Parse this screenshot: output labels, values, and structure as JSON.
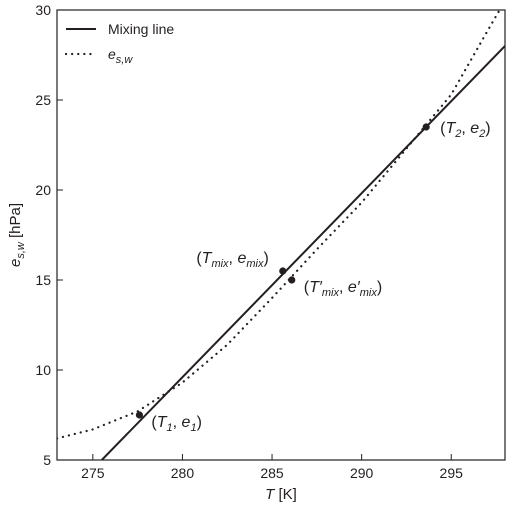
{
  "chart_data": {
    "type": "line",
    "title": "",
    "xlim": [
      273,
      298
    ],
    "ylim": [
      5,
      30
    ],
    "grid": false,
    "legend_position": "top-left",
    "x_ticks": [
      275,
      280,
      285,
      290,
      295
    ],
    "y_ticks": [
      5,
      10,
      15,
      20,
      25,
      30
    ],
    "xlabel": {
      "var": "T",
      "unit": "[K]"
    },
    "ylabel": {
      "var": "e",
      "sub": "s,w",
      "unit": "[hPa]"
    },
    "legend": [
      {
        "label": "Mixing line",
        "style": "solid"
      },
      {
        "label_var": "e",
        "label_sub": "s,w",
        "style": "dotted"
      }
    ],
    "series": [
      {
        "name": "Mixing line",
        "style": "solid",
        "x": [
          275.5,
          298.0
        ],
        "y": [
          5.0,
          28.0
        ]
      },
      {
        "name": "e_s,w",
        "style": "dotted",
        "x": [
          273.0,
          275.0,
          277.5,
          280.0,
          282.5,
          285.0,
          287.5,
          290.0,
          292.5,
          295.0,
          297.0,
          297.7
        ],
        "y": [
          6.2,
          6.7,
          7.7,
          9.3,
          11.4,
          14.0,
          16.7,
          19.3,
          22.3,
          25.3,
          28.8,
          30.0
        ]
      }
    ],
    "points": [
      {
        "x": 277.6,
        "y": 7.5,
        "label": {
          "a": "T",
          "as": "1",
          "b": "e",
          "bs": "1",
          "prime": false
        }
      },
      {
        "x": 285.6,
        "y": 15.5,
        "label": {
          "a": "T",
          "as": "mix",
          "b": "e",
          "bs": "mix",
          "prime": false
        }
      },
      {
        "x": 286.1,
        "y": 15.0,
        "label": {
          "a": "T",
          "as": "mix",
          "b": "e",
          "bs": "mix",
          "prime": true
        }
      },
      {
        "x": 293.6,
        "y": 23.5,
        "label": {
          "a": "T",
          "as": "2",
          "b": "e",
          "bs": "2",
          "prime": false
        }
      }
    ]
  }
}
